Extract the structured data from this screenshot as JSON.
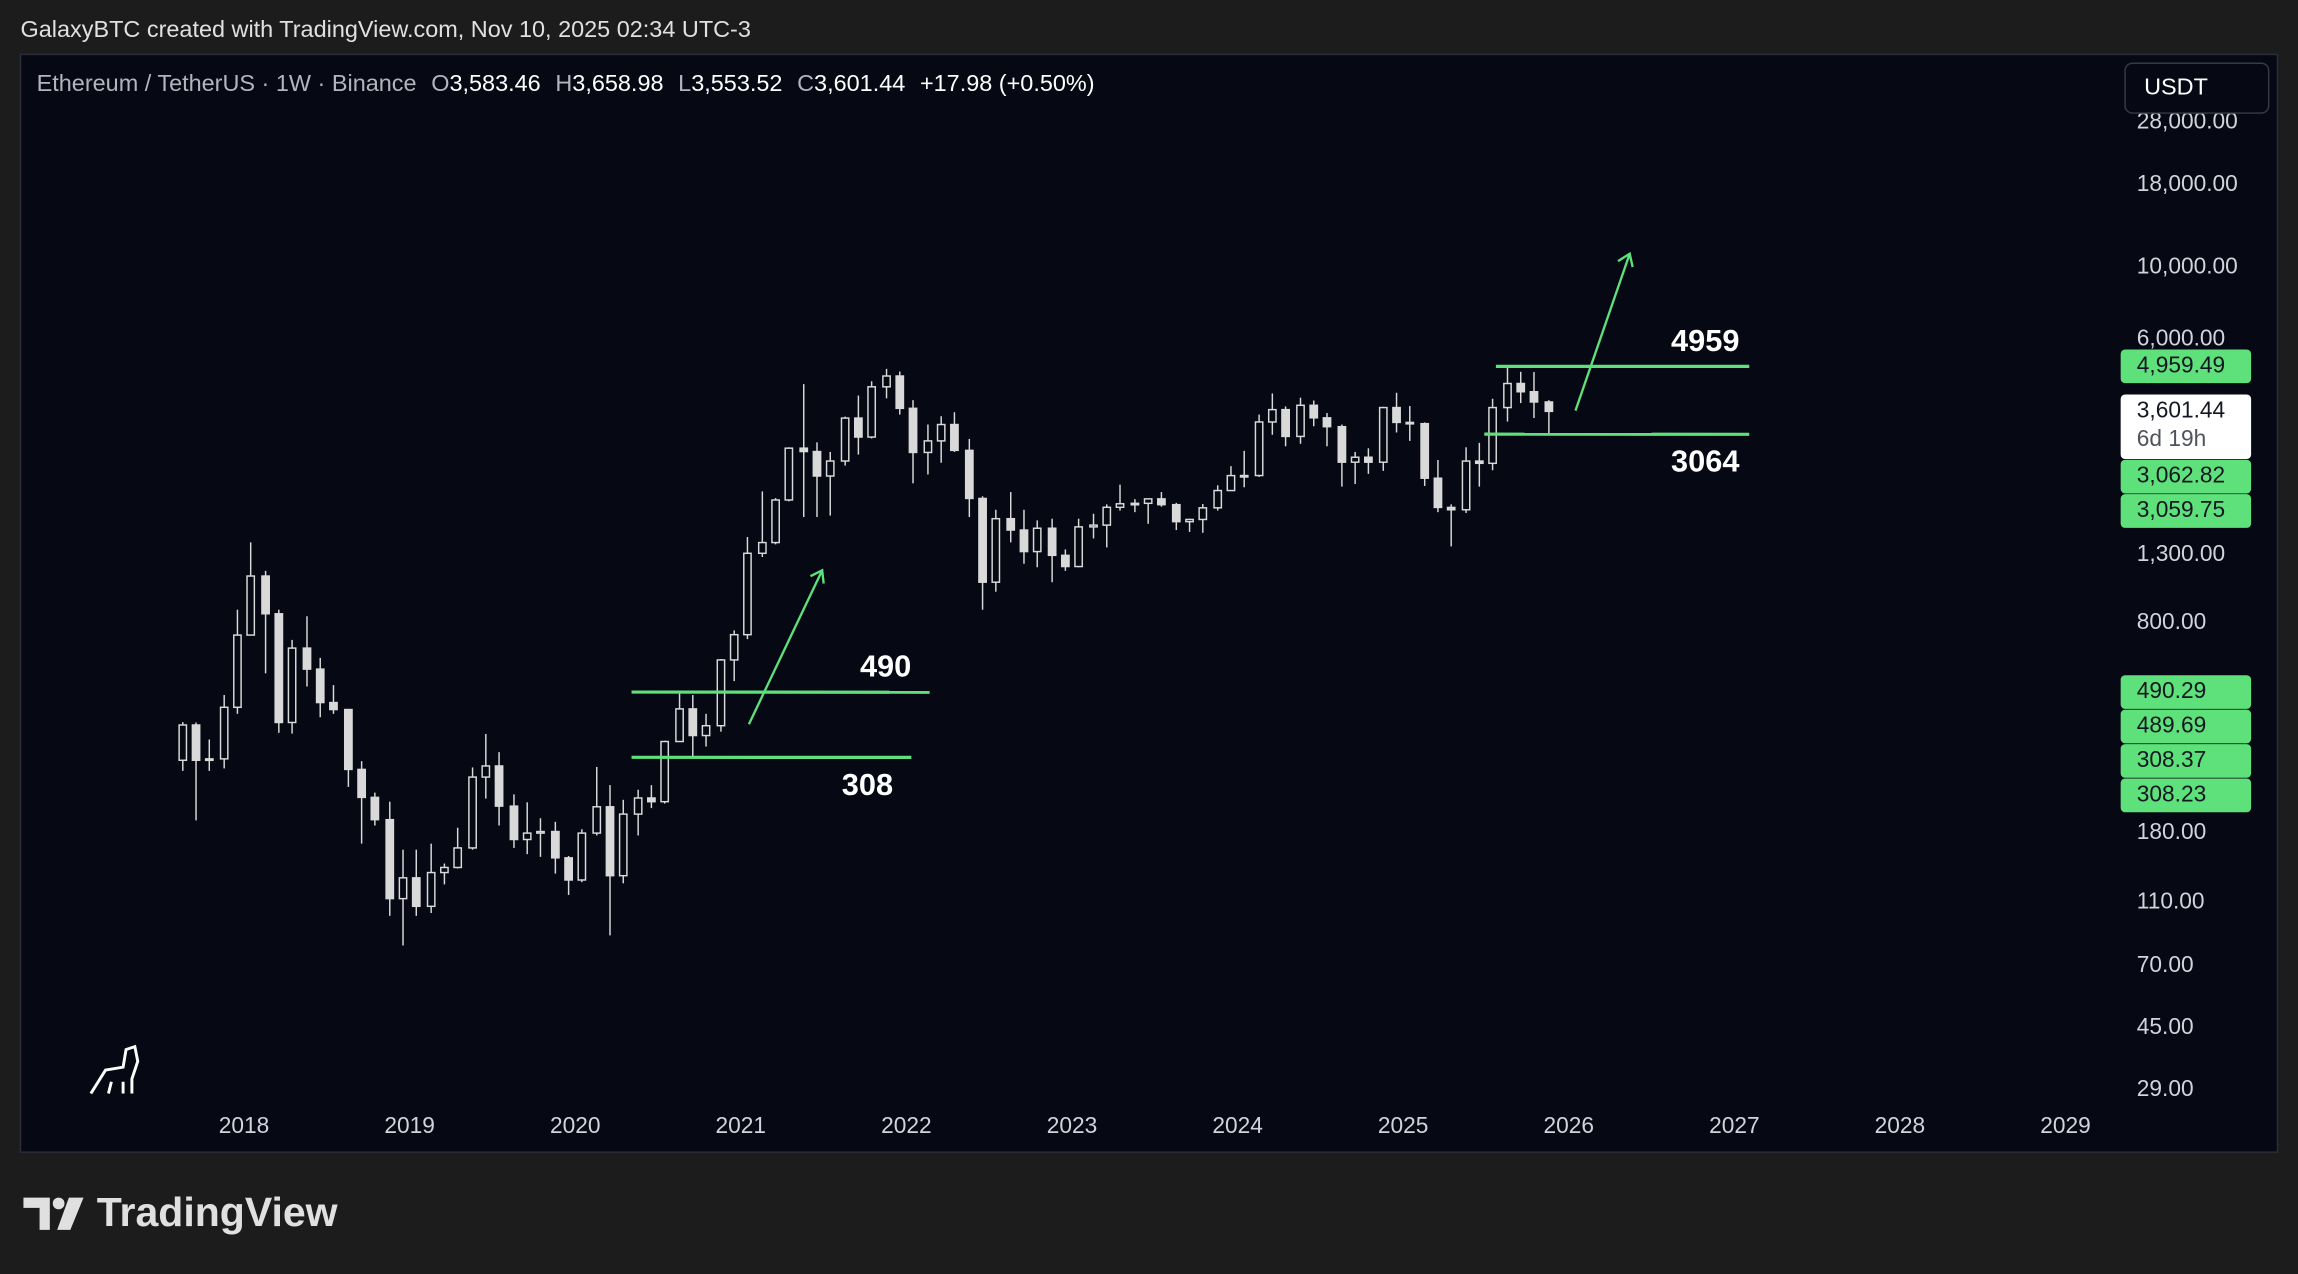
{
  "attribution": "GalaxyBTC created with TradingView.com, Nov 10, 2025 02:34 UTC-3",
  "footer": {
    "brand": "TradingView"
  },
  "chart_data": {
    "type": "candlestick",
    "title": "Ethereum / TetherUS · 1W · Binance",
    "header": [
      {
        "key": "O",
        "value": 3583.46,
        "label": "3,583.46"
      },
      {
        "key": "H",
        "value": 3658.98,
        "label": "3,658.98"
      },
      {
        "key": "L",
        "value": 3553.52,
        "label": "3,553.52"
      },
      {
        "key": "C",
        "value": 3601.44,
        "label": "3,601.44"
      }
    ],
    "change": "+17.98 (+0.50%)",
    "currency": "USDT",
    "countdown": "6d 19h",
    "x": [
      2017.63,
      2017.71,
      2017.79,
      2017.88,
      2017.96,
      2018.04,
      2018.13,
      2018.21,
      2018.29,
      2018.38,
      2018.46,
      2018.54,
      2018.63,
      2018.71,
      2018.79,
      2018.88,
      2018.96,
      2019.04,
      2019.13,
      2019.21,
      2019.29,
      2019.38,
      2019.46,
      2019.54,
      2019.63,
      2019.71,
      2019.79,
      2019.88,
      2019.96,
      2020.04,
      2020.13,
      2020.21,
      2020.29,
      2020.38,
      2020.46,
      2020.54,
      2020.63,
      2020.71,
      2020.79,
      2020.88,
      2020.96,
      2021.04,
      2021.13,
      2021.21,
      2021.29,
      2021.38,
      2021.46,
      2021.54,
      2021.63,
      2021.71,
      2021.79,
      2021.88,
      2021.96,
      2022.04,
      2022.13,
      2022.21,
      2022.29,
      2022.38,
      2022.46,
      2022.54,
      2022.63,
      2022.71,
      2022.79,
      2022.88,
      2022.96,
      2023.04,
      2023.13,
      2023.21,
      2023.29,
      2023.38,
      2023.46,
      2023.54,
      2023.63,
      2023.71,
      2023.79,
      2023.88,
      2023.96,
      2024.04,
      2024.13,
      2024.21,
      2024.29,
      2024.38,
      2024.46,
      2024.54,
      2024.63,
      2024.71,
      2024.79,
      2024.88,
      2024.96,
      2025.04,
      2025.13,
      2025.21,
      2025.29,
      2025.38,
      2025.46,
      2025.54,
      2025.63,
      2025.71,
      2025.79,
      2025.88
    ],
    "open": [
      302,
      388,
      302,
      305,
      440,
      735,
      1118,
      855,
      395,
      670,
      577,
      455,
      433,
      283,
      232,
      198,
      113,
      131,
      107,
      136,
      141,
      162,
      268,
      290,
      218,
      172,
      180,
      182,
      151,
      129,
      180,
      217,
      133,
      206,
      231,
      225,
      345,
      435,
      360,
      386,
      616,
      737,
      1314,
      1418,
      1919,
      2773,
      2707,
      2275,
      2531,
      3434,
      3001,
      4288,
      4630,
      3680,
      2690,
      2920,
      3280,
      2730,
      1940,
      1070,
      1680,
      1550,
      1330,
      1570,
      1295,
      1196,
      1585,
      1605,
      1822,
      1868,
      1874,
      1934,
      1856,
      1645,
      1671,
      1815,
      2052,
      2282,
      2283,
      3340,
      3646,
      3014,
      3760,
      3440,
      3230,
      2510,
      2600,
      2510,
      3700,
      3330,
      3300,
      2240,
      1820,
      1790,
      2530,
      2490,
      3700,
      4390,
      4140,
      3850
    ],
    "high": [
      396,
      395,
      350,
      480,
      880,
      1420,
      1160,
      880,
      710,
      840,
      625,
      515,
      435,
      300,
      240,
      225,
      160,
      160,
      167,
      145,
      187,
      287,
      364,
      320,
      237,
      224,
      200,
      195,
      153,
      185,
      288,
      253,
      228,
      245,
      253,
      347,
      488,
      480,
      420,
      620,
      760,
      1475,
      2040,
      1945,
      2790,
      4370,
      2890,
      2700,
      3470,
      4030,
      4460,
      4870,
      4780,
      3900,
      3280,
      3480,
      3580,
      2960,
      1970,
      1790,
      2030,
      1790,
      1660,
      1680,
      1350,
      1680,
      1740,
      1860,
      2140,
      1930,
      1940,
      2030,
      1880,
      1680,
      1865,
      2130,
      2440,
      2720,
      3520,
      4090,
      3730,
      3970,
      3890,
      3560,
      3280,
      2700,
      2770,
      3720,
      4110,
      3740,
      3330,
      2550,
      1860,
      2790,
      2880,
      3940,
      4959,
      4770,
      4760,
      3900
    ],
    "low": [
      280,
      197,
      280,
      285,
      420,
      735,
      560,
      367,
      365,
      510,
      410,
      420,
      250,
      167,
      190,
      100,
      81,
      100,
      102,
      125,
      140,
      160,
      230,
      190,
      162,
      155,
      152,
      135,
      116,
      127,
      177,
      87,
      126,
      177,
      215,
      222,
      345,
      310,
      333,
      370,
      530,
      714,
      1280,
      1400,
      1900,
      1700,
      1700,
      1718,
      2450,
      2650,
      2970,
      3950,
      3520,
      2160,
      2300,
      2500,
      2700,
      1700,
      880,
      1000,
      1420,
      1220,
      1190,
      1070,
      1160,
      1190,
      1460,
      1370,
      1780,
      1760,
      1620,
      1830,
      1550,
      1530,
      1520,
      1780,
      2050,
      2100,
      2260,
      3050,
      2810,
      2860,
      3240,
      2810,
      2110,
      2150,
      2310,
      2360,
      3100,
      2920,
      2120,
      1760,
      1380,
      1750,
      2110,
      2370,
      3350,
      3820,
      3435,
      3060
    ],
    "close": [
      388,
      302,
      305,
      440,
      735,
      1118,
      855,
      395,
      670,
      577,
      455,
      433,
      283,
      232,
      198,
      113,
      131,
      107,
      136,
      141,
      162,
      268,
      290,
      218,
      172,
      180,
      182,
      151,
      129,
      180,
      217,
      133,
      206,
      231,
      225,
      345,
      435,
      360,
      386,
      616,
      737,
      1314,
      1418,
      1919,
      2773,
      2707,
      2275,
      2531,
      3434,
      3001,
      4288,
      4630,
      3680,
      2690,
      2920,
      3280,
      2730,
      1940,
      1070,
      1680,
      1550,
      1330,
      1570,
      1295,
      1196,
      1585,
      1605,
      1822,
      1868,
      1874,
      1934,
      1856,
      1645,
      1671,
      1815,
      2052,
      2282,
      2283,
      3340,
      3646,
      3014,
      3760,
      3440,
      3230,
      2510,
      2600,
      2510,
      3700,
      3330,
      3300,
      2240,
      1820,
      1790,
      2530,
      2490,
      3700,
      4390,
      4140,
      3850,
      3601.44
    ],
    "color": "#d9d9d9",
    "xlim": [
      2016.65,
      2029.28
    ],
    "xticks": [
      2018,
      2019,
      2020,
      2021,
      2022,
      2023,
      2024,
      2025,
      2026,
      2027,
      2028,
      2029
    ],
    "ylim": [
      25.5,
      45000
    ],
    "yticks": [
      {
        "value": 28000,
        "label": "28,000.00"
      },
      {
        "value": 18000,
        "label": "18,000.00"
      },
      {
        "value": 10000,
        "label": "10,000.00"
      },
      {
        "value": 6000,
        "label": "6,000.00"
      },
      {
        "value": 1300,
        "label": "1,300.00"
      },
      {
        "value": 800,
        "label": "800.00"
      },
      {
        "value": 180,
        "label": "180.00"
      },
      {
        "value": 110,
        "label": "110.00"
      },
      {
        "value": 70,
        "label": "70.00"
      },
      {
        "value": 45,
        "label": "45.00"
      },
      {
        "value": 29,
        "label": "29.00"
      }
    ],
    "log_scale": true,
    "grid": false,
    "levels": [
      {
        "name": "4959",
        "x": [
          2025.56,
          2027.09
        ],
        "values": [
          4959.49
        ],
        "value_labels": [
          "4,959.49"
        ],
        "label_position": "above",
        "color": "#5ee07a"
      },
      {
        "name": "3064",
        "x": [
          2025.49,
          2027.09
        ],
        "values": [
          3062.82,
          3059.75
        ],
        "value_labels": [
          "3,062.82",
          "3,059.75"
        ],
        "label_position": "below",
        "color": "#5ee07a"
      },
      {
        "name": "490",
        "x": [
          2020.34,
          2022.14
        ],
        "values": [
          490.29,
          489.69
        ],
        "value_labels": [
          "490.29",
          "489.69"
        ],
        "label_position": "above",
        "color": "#5ee07a"
      },
      {
        "name": "308",
        "x": [
          2020.34,
          2022.03
        ],
        "values": [
          308.37,
          308.23
        ],
        "value_labels": [
          "308.37",
          "308.23"
        ],
        "label_position": "below",
        "color": "#5ee07a"
      }
    ]
  }
}
